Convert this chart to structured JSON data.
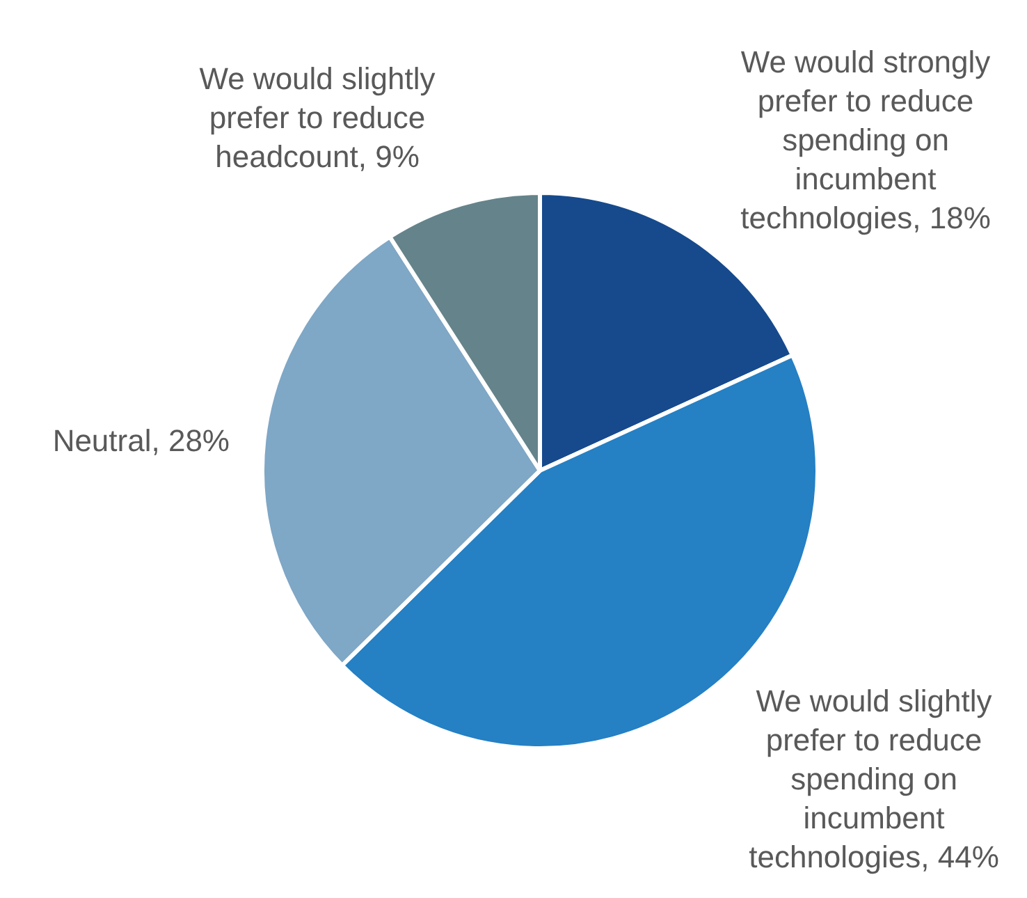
{
  "chart_data": {
    "type": "pie",
    "categories": [
      "We would strongly prefer to reduce spending on incumbent technologies",
      "We would slightly prefer to reduce spending on incumbent technologies",
      "Neutral",
      "We would slightly prefer to reduce headcount"
    ],
    "values": [
      18,
      44,
      28,
      9
    ],
    "value_labels": [
      "18%",
      "44%",
      "28%",
      "9%"
    ],
    "colors": [
      "#164a8d",
      "#2580c4",
      "#7fa7c6",
      "#65838a"
    ],
    "legend": false
  }
}
